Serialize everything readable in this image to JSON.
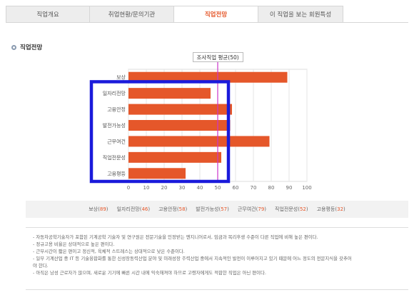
{
  "tabs": [
    {
      "label": "직업개요",
      "active": false
    },
    {
      "label": "취업현황/문의기관",
      "active": false
    },
    {
      "label": "직업전망",
      "active": true
    },
    {
      "label": "이 직업을 보는 회원특성",
      "active": false
    }
  ],
  "section": {
    "title": "직업전망"
  },
  "chart_data": {
    "type": "bar",
    "orientation": "horizontal",
    "categories": [
      "보상",
      "일자리전망",
      "고용안정",
      "발전가능성",
      "근무여건",
      "직업전문성",
      "고용평등"
    ],
    "values": [
      89,
      46,
      58,
      57,
      79,
      52,
      32
    ],
    "xlim": [
      0,
      100
    ],
    "xticks": [
      0,
      10,
      20,
      30,
      40,
      50,
      60,
      70,
      80,
      90,
      100
    ],
    "reference_line": {
      "label": "조사직업 평균(50)",
      "value": 50,
      "color": "#cc33cc"
    },
    "bar_color": "#e5572a",
    "grid": true
  },
  "annotation": {
    "type": "highlight-box",
    "color": "#1a1adb"
  },
  "legend_strip": [
    {
      "name": "보상",
      "value": "89"
    },
    {
      "name": "일자리전망",
      "value": "46"
    },
    {
      "name": "고용안정",
      "value": "58"
    },
    {
      "name": "발전가능성",
      "value": "57"
    },
    {
      "name": "근무여건",
      "value": "79"
    },
    {
      "name": "직업전문성",
      "value": "52"
    },
    {
      "name": "고용평등",
      "value": "32"
    }
  ],
  "notes": [
    "- 자동차공학기술자가 포함된 기계공학 기술자 및 연구원은 전문기술을 인정받는 엔지니어로서, 임금과 복리후생 수준이 다른 직업에 비해 높은 편이다.",
    "- 정규고용 비율은 상대적으로 높은 편이다.",
    "- 근무시간이 짧은 편이고 정신적, 육체적 스트레스는 상대적으로 낮은 수준이다.",
    "- 일부 기계산업 중 IT 등 기술융합화를 통한 신성장동력산업 분야 및 미래성장 주력산업 중에서 지속적인 발전이 이루어지고 있기 때문에 어느 정도의 전문지식을 갖추어",
    "야 한다.",
    "- 아직은 남성 근로자가 많으며, 새로운 기기에 빠른 시간 내에 익숙해져야 하므로 고령자에게도 적합한 직업은 아닌 편이다."
  ]
}
